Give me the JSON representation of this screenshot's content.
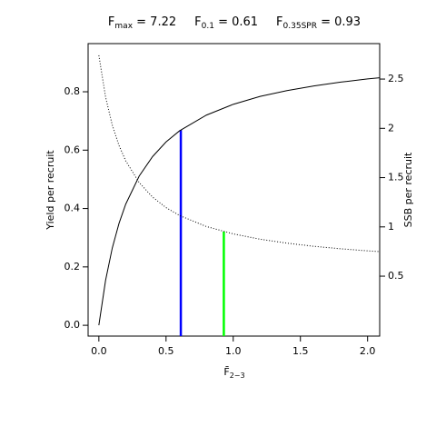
{
  "chart_data": {
    "type": "line",
    "title_parts": [
      {
        "symbol": "F",
        "subscript": "max",
        "text": " = 7.22"
      },
      {
        "symbol": "F",
        "subscript": "0.1",
        "text": " = 0.61"
      },
      {
        "symbol": "F",
        "subscript": "0.35SPR",
        "text": " = 0.93"
      }
    ],
    "x_label": {
      "symbol": "F̄",
      "subscript": "2−3"
    },
    "y_label": "Yield per recruit",
    "y2_label": "SSB per recruit",
    "x": [
      0,
      0.05,
      0.1,
      0.15,
      0.2,
      0.3,
      0.4,
      0.5,
      0.6,
      0.8,
      1.0,
      1.2,
      1.4,
      1.6,
      1.8,
      2.0,
      2.09
    ],
    "series": [
      {
        "axis": "y",
        "color": "#000000",
        "style": "solid",
        "values": [
          0,
          0.154,
          0.265,
          0.349,
          0.415,
          0.511,
          0.578,
          0.628,
          0.666,
          0.72,
          0.757,
          0.784,
          0.804,
          0.82,
          0.833,
          0.844,
          0.848
        ]
      },
      {
        "axis": "y2",
        "color": "#000000",
        "style": "dotted",
        "values": [
          2.741,
          2.318,
          2.032,
          1.826,
          1.67,
          1.45,
          1.302,
          1.196,
          1.116,
          1.004,
          0.929,
          0.875,
          0.835,
          0.803,
          0.778,
          0.757,
          0.749
        ]
      }
    ],
    "reference_lines": [
      {
        "x": 0.61,
        "y": 0.669,
        "axis": "y",
        "color": "#0000ff"
      },
      {
        "x": 0.93,
        "y": 0.952,
        "axis": "y2",
        "color": "#00ff00"
      }
    ],
    "xlim": [
      -0.08,
      2.09
    ],
    "ylim": [
      -0.037,
      0.965
    ],
    "y2lim": [
      -0.108,
      2.86
    ],
    "xticks": [
      {
        "value": 0,
        "label": "0.0"
      },
      0.5,
      {
        "value": 1,
        "label": "1.0"
      },
      1.5,
      {
        "value": 2,
        "label": "2.0"
      }
    ],
    "yticks": [
      {
        "value": 0,
        "label": "0.0"
      },
      0.2,
      0.4,
      0.6,
      0.8
    ],
    "y2ticks": [
      0.5,
      1,
      1.5,
      2,
      2.5
    ]
  }
}
